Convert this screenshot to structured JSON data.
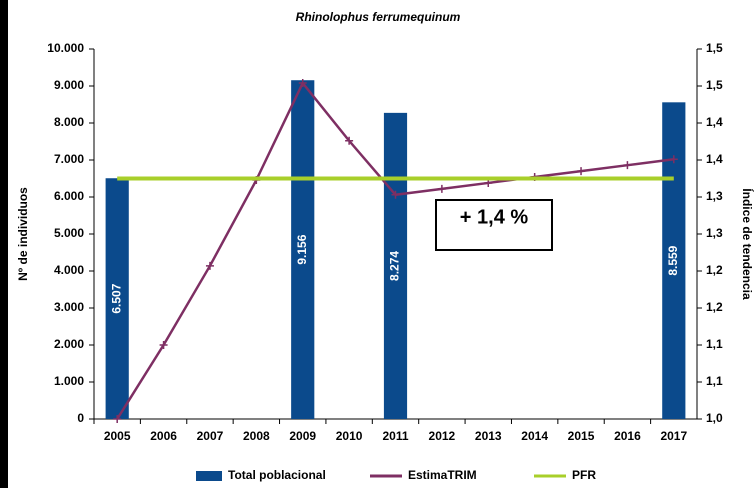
{
  "chart_data": {
    "type": "bar",
    "title": "Rhinolophus ferrumequinum",
    "ylabel": "Nº de individuos",
    "y2label": "Índice de tendencia",
    "annotation": "+ 1,4 %",
    "categories": [
      "2005",
      "2006",
      "2007",
      "2008",
      "2009",
      "2010",
      "2011",
      "2012",
      "2013",
      "2014",
      "2015",
      "2016",
      "2017"
    ],
    "series": [
      {
        "name": "Total poblacional",
        "type": "bar",
        "color": "#0b4a8c",
        "values": [
          6507,
          null,
          null,
          null,
          9156,
          null,
          8274,
          null,
          null,
          null,
          null,
          null,
          8559
        ],
        "value_labels": [
          "6.507",
          null,
          null,
          null,
          "9.156",
          null,
          "8.274",
          null,
          null,
          null,
          null,
          null,
          "8.559"
        ]
      },
      {
        "name": "EstimaTRIM",
        "type": "line",
        "axis": "y2",
        "color": "#7e2f63",
        "values": [
          1.0,
          1.1,
          1.207,
          1.323,
          1.454,
          1.376,
          1.303,
          1.311,
          1.319,
          1.327,
          1.335,
          1.343,
          1.351
        ]
      },
      {
        "name": "PFR",
        "type": "line",
        "axis": "y2",
        "color": "#a8cf2a",
        "values": [
          1.325,
          1.325,
          1.325,
          1.325,
          1.325,
          1.325,
          1.325,
          1.325,
          1.325,
          1.325,
          1.325,
          1.325,
          1.325
        ]
      }
    ],
    "ylim": [
      0,
      10000
    ],
    "yticks": [
      0,
      {
        "value": 1000,
        "label": "1.000"
      },
      {
        "value": 2000,
        "label": "2.000"
      },
      {
        "value": 3000,
        "label": "3.000"
      },
      {
        "value": 4000,
        "label": "4.000"
      },
      {
        "value": 5000,
        "label": "5.000"
      },
      {
        "value": 6000,
        "label": "6.000"
      },
      {
        "value": 7000,
        "label": "7.000"
      },
      {
        "value": 8000,
        "label": "8.000"
      },
      {
        "value": 9000,
        "label": "9.000"
      },
      {
        "value": 10000,
        "label": "10.000"
      }
    ],
    "y2lim": [
      1.0,
      1.5
    ],
    "y2ticks": [
      {
        "value": 1.0,
        "label": "1,0"
      },
      {
        "value": 1.05,
        "label": "1,1"
      },
      {
        "value": 1.1,
        "label": "1,1"
      },
      {
        "value": 1.15,
        "label": "1,2"
      },
      {
        "value": 1.2,
        "label": "1,2"
      },
      {
        "value": 1.25,
        "label": "1,3"
      },
      {
        "value": 1.3,
        "label": "1,3"
      },
      {
        "value": 1.35,
        "label": "1,4"
      },
      {
        "value": 1.4,
        "label": "1,4"
      },
      {
        "value": 1.45,
        "label": "1,5"
      },
      {
        "value": 1.5,
        "label": "1,5"
      }
    ],
    "grid": false,
    "legend": "bottom"
  }
}
